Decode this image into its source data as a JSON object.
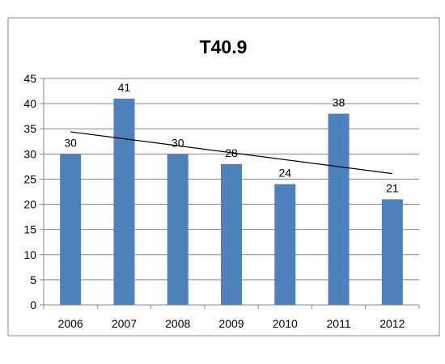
{
  "chart_data": {
    "type": "bar",
    "title": "T40.9",
    "xlabel": "",
    "ylabel": "",
    "categories": [
      "2006",
      "2007",
      "2008",
      "2009",
      "2010",
      "2011",
      "2012"
    ],
    "series": [
      {
        "values": [
          30,
          41,
          30,
          28,
          24,
          38,
          21
        ]
      }
    ],
    "data_labels": [
      "30",
      "41",
      "30",
      "28",
      "24",
      "38",
      "21"
    ],
    "y_ticks": [
      "0",
      "5",
      "10",
      "15",
      "20",
      "25",
      "30",
      "35",
      "40",
      "45"
    ],
    "ylim": [
      0,
      45
    ],
    "y_tick_step": 5,
    "gridlines": true,
    "legend": "none",
    "trendline": {
      "type": "linear",
      "start": 34.4,
      "end": 26.1
    },
    "colors": {
      "bar": "#4F81BD",
      "trendline": "#000000",
      "gridline": "#878787",
      "axis": "#878787",
      "frame": "#878787"
    }
  }
}
